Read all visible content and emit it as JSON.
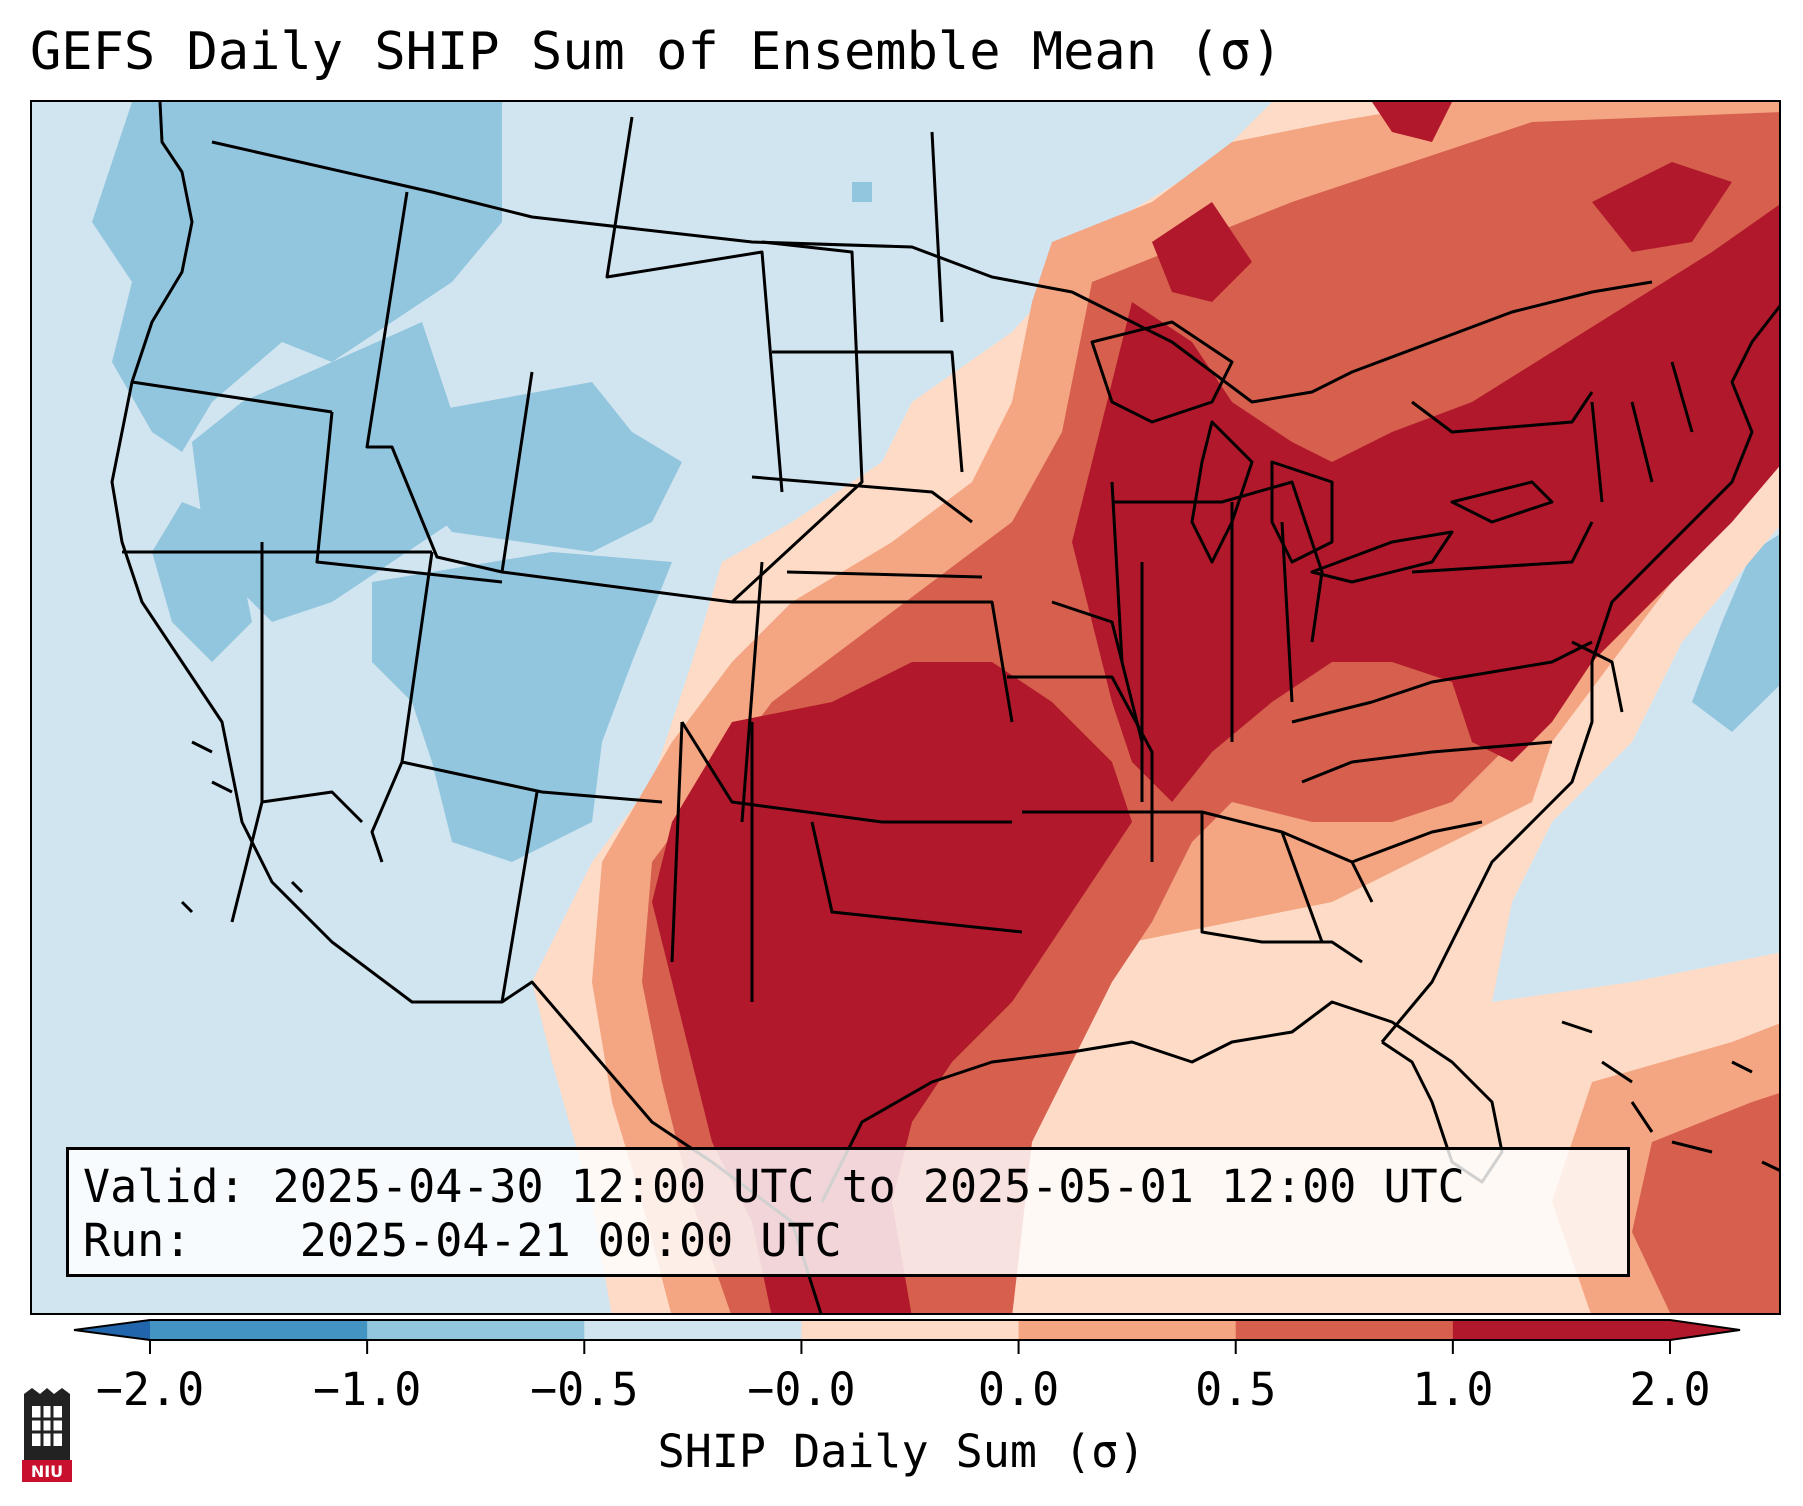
{
  "title": "GEFS Daily SHIP Sum of Ensemble Mean (σ)",
  "info": {
    "valid_label": "Valid:",
    "valid_value": "2025-04-30 12:00 UTC to 2025-05-01 12:00 UTC",
    "run_label": "Run:",
    "run_value": "2025-04-21 00:00 UTC"
  },
  "colorbar": {
    "label": "SHIP Daily Sum (σ)",
    "ticks": [
      "−2.0",
      "−1.0",
      "−0.5",
      "−0.0",
      "0.0",
      "0.5",
      "1.0",
      "2.0"
    ],
    "colors": [
      "#4393c3",
      "#92c5de",
      "#d1e5f0",
      "#fddbc7",
      "#f4a582",
      "#d6604d",
      "#b2182b"
    ],
    "under_color": "#2166ac",
    "over_color": "#b2182b"
  },
  "map": {
    "region": "CONUS",
    "background_color": "#d1e5f0"
  },
  "logo": {
    "text": "NIU",
    "icon": "niu-logo-icon"
  }
}
